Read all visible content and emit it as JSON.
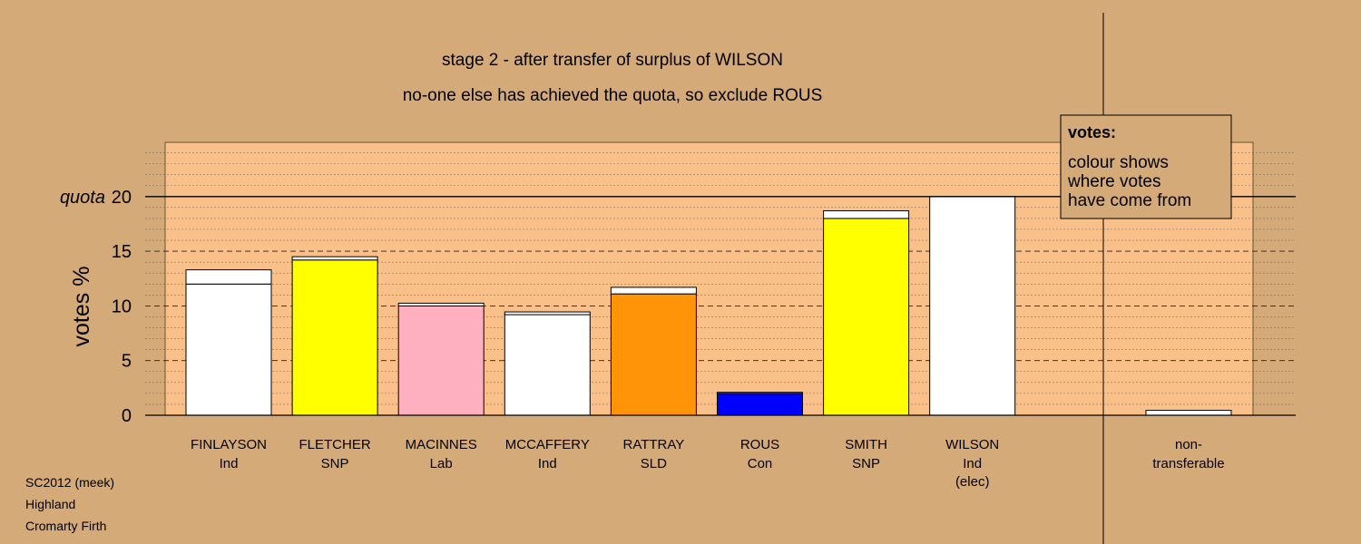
{
  "chart_data": {
    "type": "bar",
    "title": "stage 2 - after transfer of surplus of WILSON",
    "subtitle": "no-one else has achieved the quota, so exclude ROUS",
    "ylabel": "votes %",
    "quota_label": "quota",
    "quota": 20,
    "ylim": [
      0,
      25
    ],
    "yticks": [
      0,
      5,
      10,
      15,
      20
    ],
    "grid": true,
    "categories": [
      {
        "name": "FINLAYSON",
        "party": "Ind",
        "note": ""
      },
      {
        "name": "FLETCHER",
        "party": "SNP",
        "note": ""
      },
      {
        "name": "MACINNES",
        "party": "Lab",
        "note": ""
      },
      {
        "name": "MCCAFFERY",
        "party": "Ind",
        "note": ""
      },
      {
        "name": "RATTRAY",
        "party": "SLD",
        "note": ""
      },
      {
        "name": "ROUS",
        "party": "Con",
        "note": ""
      },
      {
        "name": "SMITH",
        "party": "SNP",
        "note": ""
      },
      {
        "name": "WILSON",
        "party": "Ind",
        "note": "(elec)"
      }
    ],
    "original_votes": [
      12.0,
      14.2,
      10.0,
      9.2,
      11.1,
      2.0,
      18.0,
      20.0
    ],
    "transferred_from_wilson": [
      1.3,
      0.3,
      0.25,
      0.25,
      0.6,
      0.1,
      0.7,
      0
    ],
    "bar_colors": [
      "#ffffff",
      "#ffff00",
      "#ffb0c0",
      "#ffffff",
      "#ff9408",
      "#0000ff",
      "#ffff00",
      "#ffffff"
    ],
    "transfer_color": "#ffffff",
    "nontransferable": {
      "label_line1": "non-",
      "label_line2": "transferable",
      "value": 0.45
    },
    "legend": {
      "title": "votes:",
      "lines": [
        "colour shows",
        "where votes",
        "have come from"
      ],
      "position": "top-right"
    }
  },
  "footer": {
    "line1": "SC2012 (meek)",
    "line2": "Highland",
    "line3": "Cromarty Firth"
  },
  "colors": {
    "background": "#d4aa78",
    "plot_background": "#fac08a"
  }
}
